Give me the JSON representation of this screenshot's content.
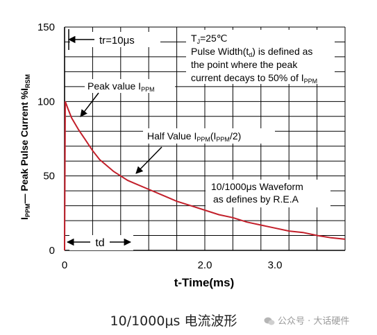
{
  "chart_data": {
    "type": "line",
    "xlabel": "t-Time(ms)",
    "ylabel": {
      "parts": [
        {
          "text": "I",
          "sub": false
        },
        {
          "text": "PPM",
          "sub": true
        },
        {
          "text": "— Peak Pulse Current  %I",
          "sub": false
        },
        {
          "text": "RSM",
          "sub": true
        }
      ]
    },
    "xlim": [
      0,
      4.0
    ],
    "ylim": [
      0,
      150
    ],
    "x_ticks": [
      {
        "v": 0,
        "label": "0"
      },
      {
        "v": 2.0,
        "label": "2.0"
      },
      {
        "v": 3.0,
        "label": "3.0"
      }
    ],
    "y_ticks": [
      {
        "v": 0,
        "label": "0"
      },
      {
        "v": 50,
        "label": "50"
      },
      {
        "v": 100,
        "label": "100"
      },
      {
        "v": 150,
        "label": "150"
      }
    ],
    "grid": true,
    "series": [
      {
        "x": [
          0,
          0.01,
          0.05,
          0.1,
          0.2,
          0.3,
          0.4,
          0.5,
          0.6,
          0.7,
          0.8,
          0.9,
          1.0,
          1.2,
          1.4,
          1.6,
          1.8,
          2.0,
          2.2,
          2.4,
          2.6,
          2.8,
          3.0,
          3.2,
          3.4,
          3.6,
          3.8,
          4.0
        ],
        "y": [
          0,
          100,
          95,
          89,
          81,
          74,
          67,
          61,
          57,
          53,
          50,
          47,
          45,
          41,
          37,
          33,
          30,
          27,
          24,
          22,
          19,
          17,
          15,
          13,
          12,
          10,
          8.5,
          7.5
        ]
      }
    ],
    "annotations": {
      "tr": "tr=10μs",
      "td": "td",
      "peak": {
        "main": "Peak value I",
        "sub": "PPM"
      },
      "half": {
        "main": "Half Value I",
        "sub1": "PPM",
        "mid": "(I",
        "sub2": "PPM",
        "end": "/2)"
      },
      "waveform_lines": [
        "10/1000μs Waveform",
        "as defines by R.E.A"
      ],
      "note": {
        "line1": {
          "main": "T",
          "sub": "J",
          "end": "=25℃"
        },
        "line2": {
          "main": "Pulse Width(t",
          "sub": "d",
          "end": ") is defined as"
        },
        "line3": "the point where the peak",
        "line4": {
          "main": "current decays to 50% of I",
          "sub": "PPM"
        }
      }
    }
  },
  "caption": "10/1000μs 电流波形",
  "watermark": "公众号 · 大话硬件"
}
